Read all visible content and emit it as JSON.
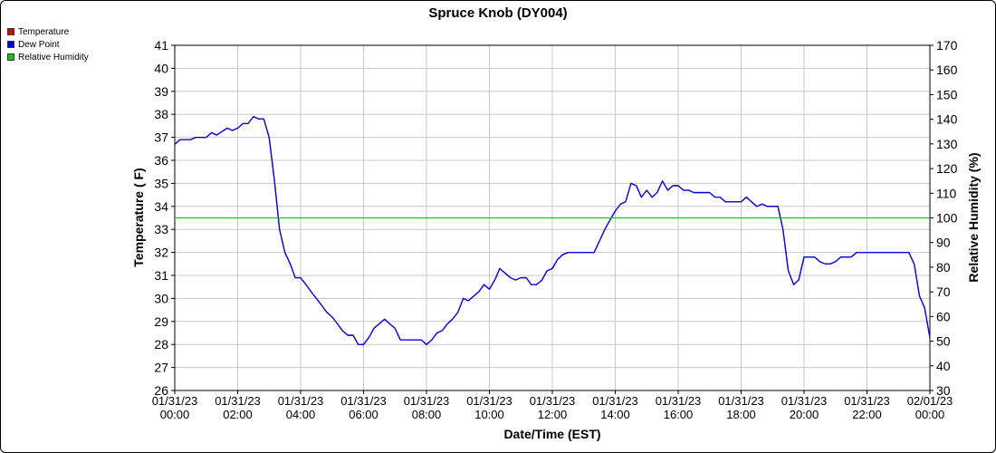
{
  "chart_data": {
    "type": "line",
    "title": "Spruce Knob (DY004)",
    "xlabel": "Date/Time (EST)",
    "ylabel": "Temperature ( F)",
    "y2label": "Relative Humidity (%)",
    "ylim": [
      26,
      41
    ],
    "y2lim": [
      30,
      170
    ],
    "xlim": [
      "01/31/23 00:00",
      "02/01/23 00:00"
    ],
    "grid": true,
    "legend_position": "top-left",
    "x_ticks": [
      {
        "date": "01/31/23",
        "time": "00:00",
        "hour": 0
      },
      {
        "date": "01/31/23",
        "time": "02:00",
        "hour": 2
      },
      {
        "date": "01/31/23",
        "time": "04:00",
        "hour": 4
      },
      {
        "date": "01/31/23",
        "time": "06:00",
        "hour": 6
      },
      {
        "date": "01/31/23",
        "time": "08:00",
        "hour": 8
      },
      {
        "date": "01/31/23",
        "time": "10:00",
        "hour": 10
      },
      {
        "date": "01/31/23",
        "time": "12:00",
        "hour": 12
      },
      {
        "date": "01/31/23",
        "time": "14:00",
        "hour": 14
      },
      {
        "date": "01/31/23",
        "time": "16:00",
        "hour": 16
      },
      {
        "date": "01/31/23",
        "time": "18:00",
        "hour": 18
      },
      {
        "date": "01/31/23",
        "time": "20:00",
        "hour": 20
      },
      {
        "date": "01/31/23",
        "time": "22:00",
        "hour": 22
      },
      {
        "date": "02/01/23",
        "time": "00:00",
        "hour": 24
      }
    ],
    "y_ticks": [
      26,
      27,
      28,
      29,
      30,
      31,
      32,
      33,
      34,
      35,
      36,
      37,
      38,
      39,
      40,
      41
    ],
    "y2_ticks": [
      30,
      40,
      50,
      60,
      70,
      80,
      90,
      100,
      110,
      120,
      130,
      140,
      150,
      160,
      170
    ],
    "legend": [
      {
        "name": "Temperature",
        "color": "#dd0000"
      },
      {
        "name": "Dew Point",
        "color": "#0000dd"
      },
      {
        "name": "Relative Humidity",
        "color": "#00cc00"
      }
    ],
    "series": [
      {
        "name": "Temperature",
        "color": "#c0003c",
        "axis": "left",
        "points": [
          [
            0.0,
            36.7
          ],
          [
            0.17,
            36.9
          ],
          [
            0.5,
            36.9
          ],
          [
            0.67,
            37.0
          ],
          [
            1.0,
            37.0
          ],
          [
            1.17,
            37.2
          ],
          [
            1.33,
            37.1
          ],
          [
            1.67,
            37.4
          ],
          [
            1.83,
            37.3
          ],
          [
            2.0,
            37.4
          ],
          [
            2.17,
            37.6
          ],
          [
            2.33,
            37.6
          ],
          [
            2.5,
            37.9
          ],
          [
            2.67,
            37.8
          ],
          [
            2.83,
            37.8
          ],
          [
            3.0,
            37.0
          ],
          [
            3.17,
            35.1
          ],
          [
            3.33,
            33.0
          ],
          [
            3.5,
            32.0
          ],
          [
            3.67,
            31.5
          ],
          [
            3.83,
            30.9
          ],
          [
            4.0,
            30.9
          ],
          [
            4.17,
            30.6
          ],
          [
            4.33,
            30.3
          ],
          [
            4.5,
            30.0
          ],
          [
            4.67,
            29.7
          ],
          [
            4.83,
            29.4
          ],
          [
            5.0,
            29.2
          ],
          [
            5.17,
            28.9
          ],
          [
            5.33,
            28.6
          ],
          [
            5.5,
            28.4
          ],
          [
            5.67,
            28.4
          ],
          [
            5.83,
            28.0
          ],
          [
            6.0,
            28.0
          ],
          [
            6.17,
            28.3
          ],
          [
            6.33,
            28.7
          ],
          [
            6.5,
            28.9
          ],
          [
            6.67,
            29.1
          ],
          [
            6.83,
            28.9
          ],
          [
            7.0,
            28.7
          ],
          [
            7.17,
            28.2
          ],
          [
            7.5,
            28.2
          ],
          [
            7.83,
            28.2
          ],
          [
            8.0,
            28.0
          ],
          [
            8.17,
            28.2
          ],
          [
            8.33,
            28.5
          ],
          [
            8.5,
            28.6
          ],
          [
            8.67,
            28.9
          ],
          [
            8.83,
            29.1
          ],
          [
            9.0,
            29.4
          ],
          [
            9.17,
            30.0
          ],
          [
            9.33,
            29.9
          ],
          [
            9.5,
            30.1
          ],
          [
            9.67,
            30.3
          ],
          [
            9.83,
            30.6
          ],
          [
            10.0,
            30.4
          ],
          [
            10.17,
            30.8
          ],
          [
            10.33,
            31.3
          ],
          [
            10.5,
            31.1
          ],
          [
            10.67,
            30.9
          ],
          [
            10.83,
            30.8
          ],
          [
            11.0,
            30.9
          ],
          [
            11.17,
            30.9
          ],
          [
            11.33,
            30.6
          ],
          [
            11.5,
            30.6
          ],
          [
            11.67,
            30.8
          ],
          [
            11.83,
            31.2
          ],
          [
            12.0,
            31.3
          ],
          [
            12.17,
            31.7
          ],
          [
            12.33,
            31.9
          ],
          [
            12.5,
            32.0
          ],
          [
            12.67,
            32.0
          ],
          [
            13.0,
            32.0
          ],
          [
            13.33,
            32.0
          ],
          [
            13.5,
            32.5
          ],
          [
            13.67,
            33.0
          ],
          [
            13.83,
            33.4
          ],
          [
            14.0,
            33.8
          ],
          [
            14.17,
            34.1
          ],
          [
            14.33,
            34.2
          ],
          [
            14.5,
            35.0
          ],
          [
            14.67,
            34.9
          ],
          [
            14.83,
            34.4
          ],
          [
            15.0,
            34.7
          ],
          [
            15.17,
            34.4
          ],
          [
            15.33,
            34.6
          ],
          [
            15.5,
            35.1
          ],
          [
            15.67,
            34.7
          ],
          [
            15.83,
            34.9
          ],
          [
            16.0,
            34.9
          ],
          [
            16.17,
            34.7
          ],
          [
            16.33,
            34.7
          ],
          [
            16.5,
            34.6
          ],
          [
            16.83,
            34.6
          ],
          [
            17.0,
            34.6
          ],
          [
            17.17,
            34.4
          ],
          [
            17.33,
            34.4
          ],
          [
            17.5,
            34.2
          ],
          [
            17.83,
            34.2
          ],
          [
            18.0,
            34.2
          ],
          [
            18.17,
            34.4
          ],
          [
            18.33,
            34.2
          ],
          [
            18.5,
            34.0
          ],
          [
            18.67,
            34.1
          ],
          [
            18.83,
            34.0
          ],
          [
            19.0,
            34.0
          ],
          [
            19.17,
            34.0
          ],
          [
            19.33,
            33.0
          ],
          [
            19.5,
            31.2
          ],
          [
            19.67,
            30.6
          ],
          [
            19.83,
            30.8
          ],
          [
            20.0,
            31.8
          ],
          [
            20.17,
            31.8
          ],
          [
            20.33,
            31.8
          ],
          [
            20.5,
            31.6
          ],
          [
            20.67,
            31.5
          ],
          [
            20.83,
            31.5
          ],
          [
            21.0,
            31.6
          ],
          [
            21.17,
            31.8
          ],
          [
            21.33,
            31.8
          ],
          [
            21.5,
            31.8
          ],
          [
            21.67,
            32.0
          ],
          [
            22.0,
            32.0
          ],
          [
            22.5,
            32.0
          ],
          [
            23.0,
            32.0
          ],
          [
            23.33,
            32.0
          ],
          [
            23.5,
            31.5
          ],
          [
            23.67,
            30.1
          ],
          [
            23.83,
            29.6
          ],
          [
            24.0,
            28.3
          ]
        ]
      },
      {
        "name": "Dew Point",
        "color": "#0000dd",
        "axis": "left",
        "points": [
          [
            0.0,
            36.7
          ],
          [
            0.17,
            36.9
          ],
          [
            0.5,
            36.9
          ],
          [
            0.67,
            37.0
          ],
          [
            1.0,
            37.0
          ],
          [
            1.17,
            37.2
          ],
          [
            1.33,
            37.1
          ],
          [
            1.67,
            37.4
          ],
          [
            1.83,
            37.3
          ],
          [
            2.0,
            37.4
          ],
          [
            2.17,
            37.6
          ],
          [
            2.33,
            37.6
          ],
          [
            2.5,
            37.9
          ],
          [
            2.67,
            37.8
          ],
          [
            2.83,
            37.8
          ],
          [
            3.0,
            37.0
          ],
          [
            3.17,
            35.1
          ],
          [
            3.33,
            33.0
          ],
          [
            3.5,
            32.0
          ],
          [
            3.67,
            31.5
          ],
          [
            3.83,
            30.9
          ],
          [
            4.0,
            30.9
          ],
          [
            4.17,
            30.6
          ],
          [
            4.33,
            30.3
          ],
          [
            4.5,
            30.0
          ],
          [
            4.67,
            29.7
          ],
          [
            4.83,
            29.4
          ],
          [
            5.0,
            29.2
          ],
          [
            5.17,
            28.9
          ],
          [
            5.33,
            28.6
          ],
          [
            5.5,
            28.4
          ],
          [
            5.67,
            28.4
          ],
          [
            5.83,
            28.0
          ],
          [
            6.0,
            28.0
          ],
          [
            6.17,
            28.3
          ],
          [
            6.33,
            28.7
          ],
          [
            6.5,
            28.9
          ],
          [
            6.67,
            29.1
          ],
          [
            6.83,
            28.9
          ],
          [
            7.0,
            28.7
          ],
          [
            7.17,
            28.2
          ],
          [
            7.5,
            28.2
          ],
          [
            7.83,
            28.2
          ],
          [
            8.0,
            28.0
          ],
          [
            8.17,
            28.2
          ],
          [
            8.33,
            28.5
          ],
          [
            8.5,
            28.6
          ],
          [
            8.67,
            28.9
          ],
          [
            8.83,
            29.1
          ],
          [
            9.0,
            29.4
          ],
          [
            9.17,
            30.0
          ],
          [
            9.33,
            29.9
          ],
          [
            9.5,
            30.1
          ],
          [
            9.67,
            30.3
          ],
          [
            9.83,
            30.6
          ],
          [
            10.0,
            30.4
          ],
          [
            10.17,
            30.8
          ],
          [
            10.33,
            31.3
          ],
          [
            10.5,
            31.1
          ],
          [
            10.67,
            30.9
          ],
          [
            10.83,
            30.8
          ],
          [
            11.0,
            30.9
          ],
          [
            11.17,
            30.9
          ],
          [
            11.33,
            30.6
          ],
          [
            11.5,
            30.6
          ],
          [
            11.67,
            30.8
          ],
          [
            11.83,
            31.2
          ],
          [
            12.0,
            31.3
          ],
          [
            12.17,
            31.7
          ],
          [
            12.33,
            31.9
          ],
          [
            12.5,
            32.0
          ],
          [
            12.67,
            32.0
          ],
          [
            13.0,
            32.0
          ],
          [
            13.33,
            32.0
          ],
          [
            13.5,
            32.5
          ],
          [
            13.67,
            33.0
          ],
          [
            13.83,
            33.4
          ],
          [
            14.0,
            33.8
          ],
          [
            14.17,
            34.1
          ],
          [
            14.33,
            34.2
          ],
          [
            14.5,
            35.0
          ],
          [
            14.67,
            34.9
          ],
          [
            14.83,
            34.4
          ],
          [
            15.0,
            34.7
          ],
          [
            15.17,
            34.4
          ],
          [
            15.33,
            34.6
          ],
          [
            15.5,
            35.1
          ],
          [
            15.67,
            34.7
          ],
          [
            15.83,
            34.9
          ],
          [
            16.0,
            34.9
          ],
          [
            16.17,
            34.7
          ],
          [
            16.33,
            34.7
          ],
          [
            16.5,
            34.6
          ],
          [
            16.83,
            34.6
          ],
          [
            17.0,
            34.6
          ],
          [
            17.17,
            34.4
          ],
          [
            17.33,
            34.4
          ],
          [
            17.5,
            34.2
          ],
          [
            17.83,
            34.2
          ],
          [
            18.0,
            34.2
          ],
          [
            18.17,
            34.4
          ],
          [
            18.33,
            34.2
          ],
          [
            18.5,
            34.0
          ],
          [
            18.67,
            34.1
          ],
          [
            18.83,
            34.0
          ],
          [
            19.0,
            34.0
          ],
          [
            19.17,
            34.0
          ],
          [
            19.33,
            33.0
          ],
          [
            19.5,
            31.2
          ],
          [
            19.67,
            30.6
          ],
          [
            19.83,
            30.8
          ],
          [
            20.0,
            31.8
          ],
          [
            20.17,
            31.8
          ],
          [
            20.33,
            31.8
          ],
          [
            20.5,
            31.6
          ],
          [
            20.67,
            31.5
          ],
          [
            20.83,
            31.5
          ],
          [
            21.0,
            31.6
          ],
          [
            21.17,
            31.8
          ],
          [
            21.33,
            31.8
          ],
          [
            21.5,
            31.8
          ],
          [
            21.67,
            32.0
          ],
          [
            22.0,
            32.0
          ],
          [
            22.5,
            32.0
          ],
          [
            23.0,
            32.0
          ],
          [
            23.33,
            32.0
          ],
          [
            23.5,
            31.5
          ],
          [
            23.67,
            30.1
          ],
          [
            23.83,
            29.6
          ],
          [
            24.0,
            28.3
          ]
        ]
      },
      {
        "name": "Relative Humidity",
        "color": "#00cc00",
        "axis": "right",
        "points": [
          [
            0.0,
            100
          ],
          [
            24.0,
            100
          ]
        ]
      }
    ]
  }
}
